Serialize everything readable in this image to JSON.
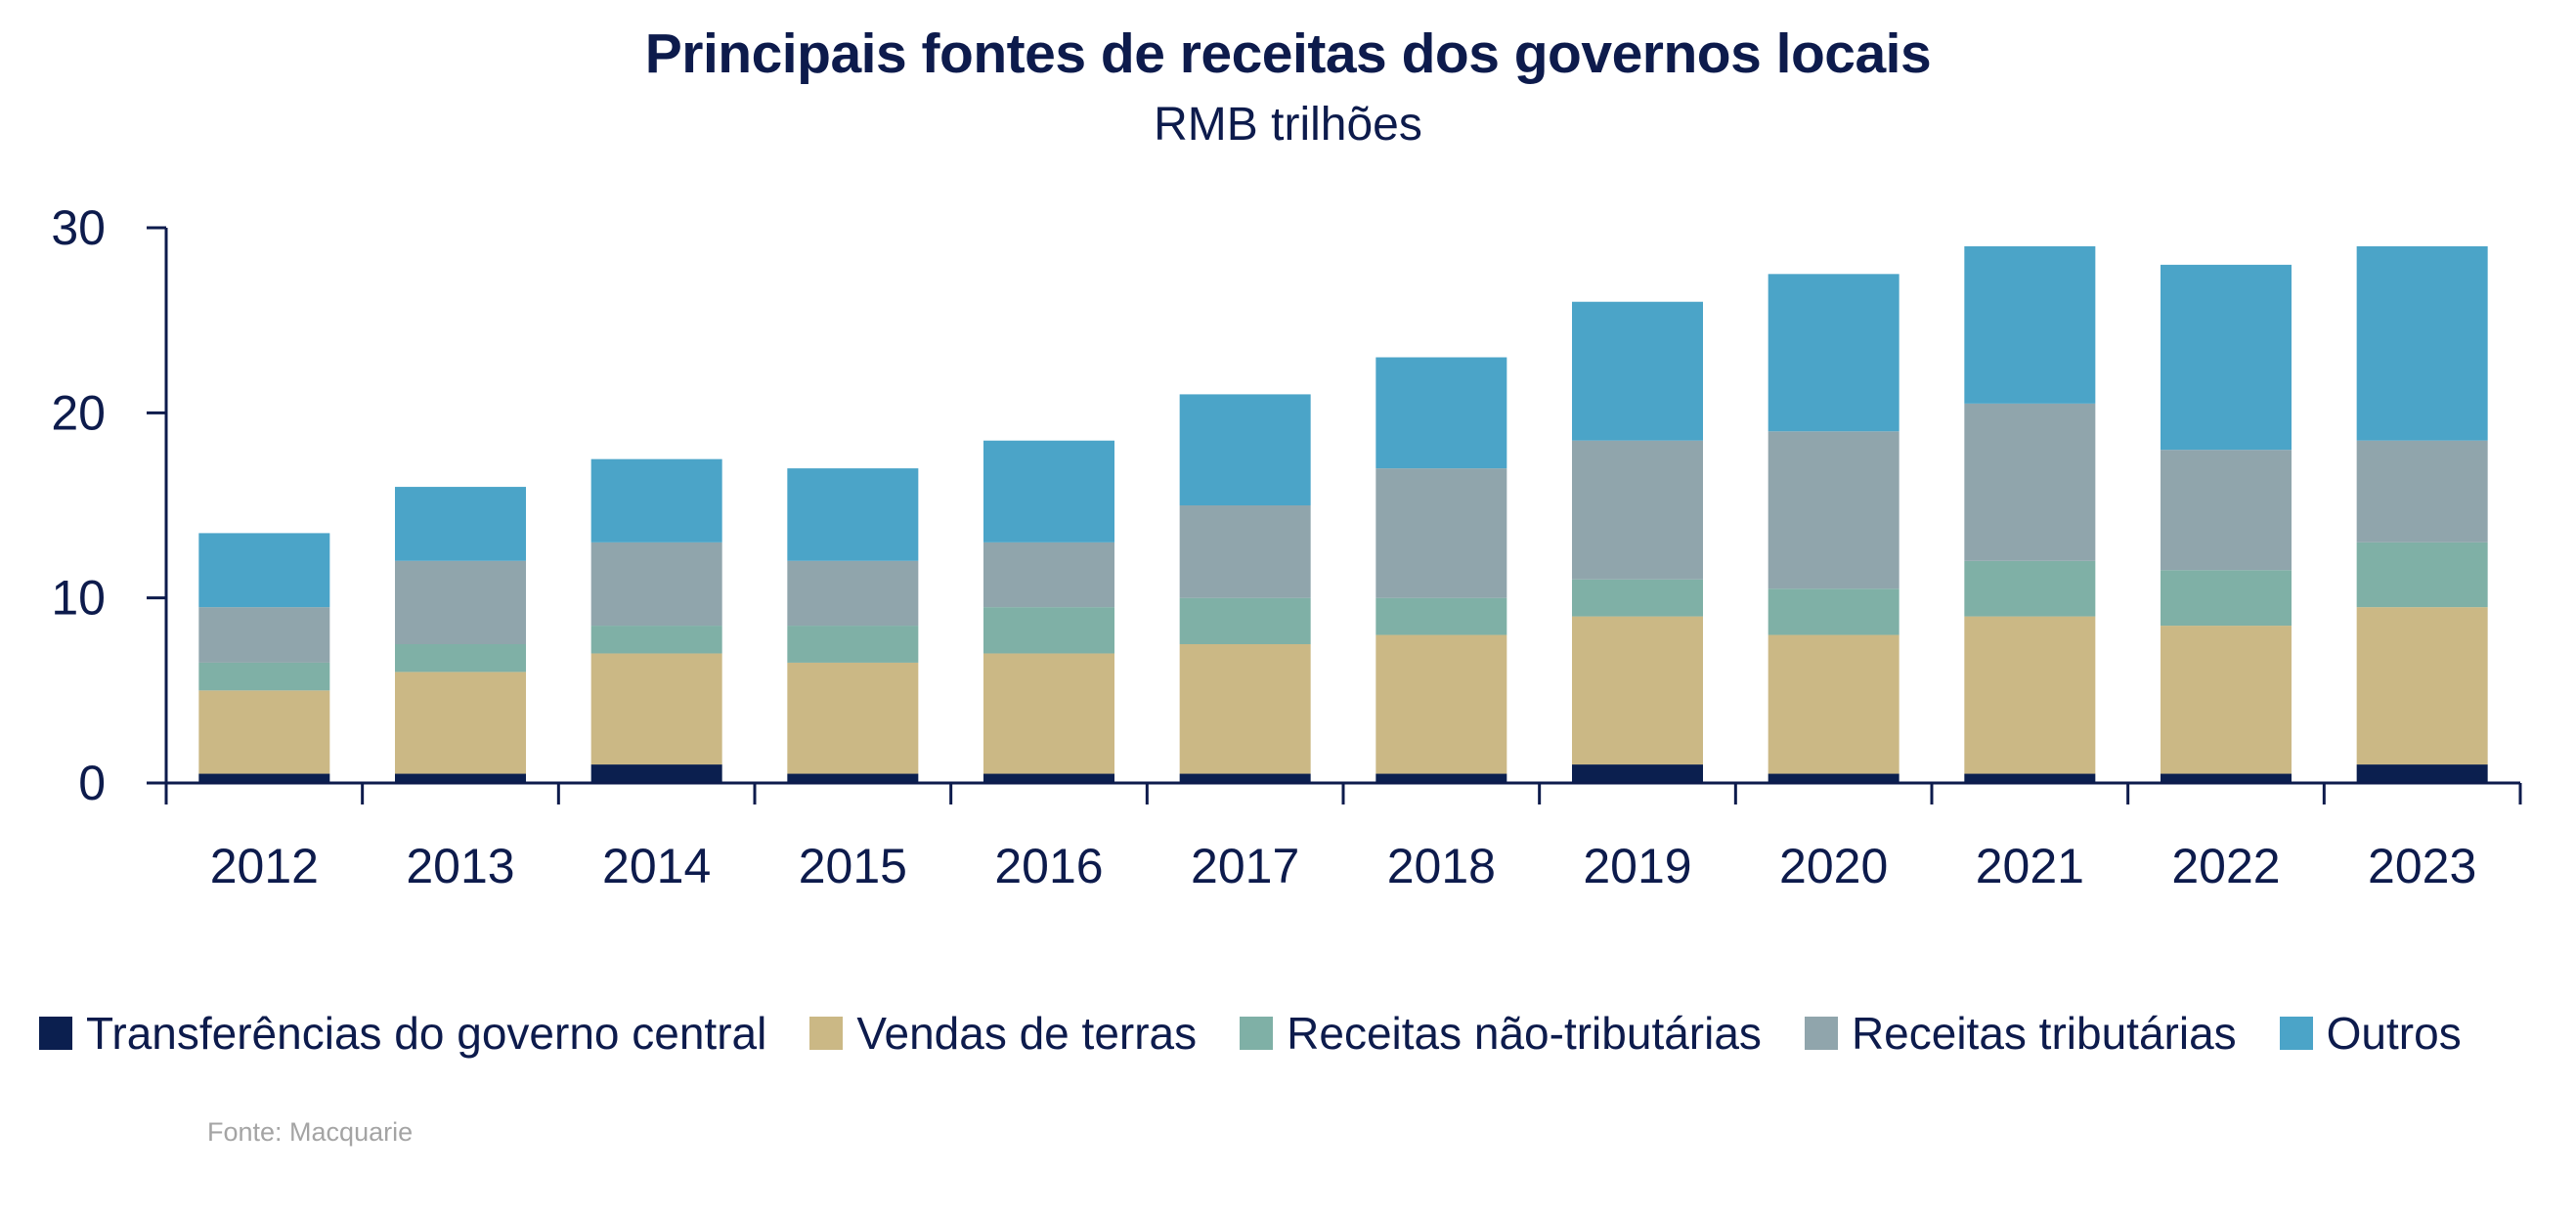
{
  "chart_data": {
    "type": "bar",
    "stacked": true,
    "title": "Principais fontes de receitas dos governos locais",
    "subtitle": "RMB trilhões",
    "categories": [
      "2012",
      "2013",
      "2014",
      "2015",
      "2016",
      "2017",
      "2018",
      "2019",
      "2020",
      "2021",
      "2022",
      "2023"
    ],
    "series": [
      {
        "name": "Transferências do governo central",
        "color": "#0b1f4f",
        "values": [
          0.5,
          0.5,
          1.0,
          0.5,
          0.5,
          0.5,
          0.5,
          1.0,
          0.5,
          0.5,
          0.5,
          1.0
        ]
      },
      {
        "name": "Vendas de terras",
        "color": "#cbb885",
        "values": [
          4.5,
          5.5,
          6.0,
          6.0,
          6.5,
          7.0,
          7.5,
          8.0,
          7.5,
          8.5,
          8.0,
          8.5
        ]
      },
      {
        "name": "Receitas não-tributárias",
        "color": "#7fb0a6",
        "values": [
          1.5,
          1.5,
          1.5,
          2.0,
          2.5,
          2.5,
          2.0,
          2.0,
          2.5,
          3.0,
          3.0,
          3.5
        ]
      },
      {
        "name": "Receitas tributárias",
        "color": "#90a5ac",
        "values": [
          3.0,
          4.5,
          4.5,
          3.5,
          3.5,
          5.0,
          7.0,
          7.5,
          8.5,
          8.5,
          6.5,
          5.5
        ]
      },
      {
        "name": "Outros",
        "color": "#4ba4c8",
        "values": [
          4.0,
          4.0,
          4.5,
          5.0,
          5.5,
          6.0,
          6.0,
          7.5,
          8.5,
          8.5,
          10.0,
          10.5
        ]
      }
    ],
    "ylim": [
      0,
      30
    ],
    "yticks": [
      0,
      10,
      20,
      30
    ],
    "grid": false,
    "legend_position": "bottom",
    "source": "Fonte: Macquarie"
  }
}
